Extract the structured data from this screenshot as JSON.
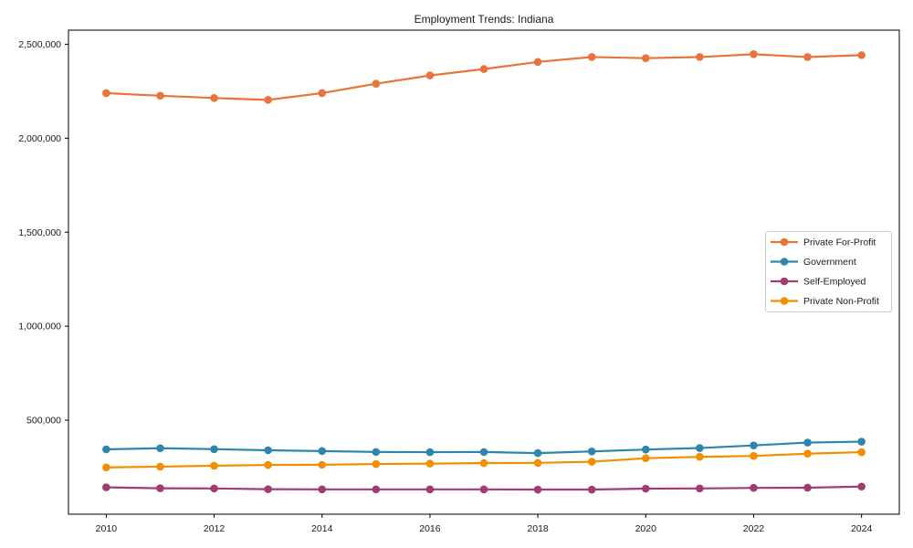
{
  "chart_data": {
    "type": "line",
    "title": "Employment Trends: Indiana",
    "xlabel": "",
    "ylabel": "",
    "grid": false,
    "legend_position": "center-right",
    "xlim": [
      2009.3,
      2024.7
    ],
    "ylim": [
      0,
      2575000
    ],
    "x": [
      2010,
      2011,
      2012,
      2013,
      2014,
      2015,
      2016,
      2017,
      2018,
      2019,
      2020,
      2021,
      2022,
      2023,
      2024
    ],
    "xticks": [
      2010,
      2012,
      2014,
      2016,
      2018,
      2020,
      2022,
      2024
    ],
    "yticks": [
      500000,
      1000000,
      1500000,
      2000000,
      2500000
    ],
    "ytick_labels": [
      "500,000",
      "1,000,000",
      "1,500,000",
      "2,000,000",
      "2,500,000"
    ],
    "series": [
      {
        "name": "Private For-Profit",
        "color": "#e8743b",
        "values": [
          2240000,
          2226000,
          2214000,
          2204000,
          2240000,
          2290000,
          2334000,
          2368000,
          2406000,
          2432000,
          2426000,
          2432000,
          2447000,
          2432000,
          2442000
        ]
      },
      {
        "name": "Government",
        "color": "#2e86ab",
        "values": [
          345000,
          351000,
          346000,
          340000,
          336000,
          331000,
          330000,
          331000,
          325000,
          334000,
          344000,
          352000,
          366000,
          381000,
          386000
        ]
      },
      {
        "name": "Self-Employed",
        "color": "#a23b72",
        "values": [
          143000,
          138000,
          137000,
          133000,
          132000,
          132000,
          132000,
          132000,
          131000,
          131000,
          136000,
          137000,
          140000,
          141000,
          147000
        ]
      },
      {
        "name": "Private Non-Profit",
        "color": "#f18f01",
        "values": [
          249000,
          253000,
          258000,
          262000,
          263000,
          267000,
          269000,
          272000,
          273000,
          279000,
          298000,
          305000,
          310000,
          322000,
          330000
        ]
      }
    ]
  }
}
